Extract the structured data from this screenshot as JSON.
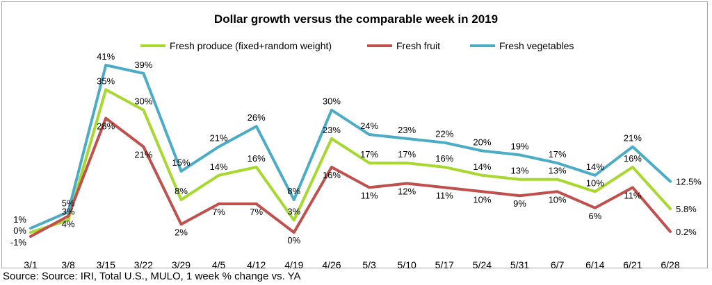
{
  "chart_data": {
    "type": "line",
    "title": "Dollar growth versus the comparable week in 2019",
    "categories": [
      "3/1",
      "3/8",
      "3/15",
      "3/22",
      "3/29",
      "4/5",
      "4/12",
      "4/19",
      "4/26",
      "5/3",
      "5/10",
      "5/17",
      "5/24",
      "5/31",
      "6/7",
      "6/14",
      "6/21",
      "6/28"
    ],
    "series": [
      {
        "name": "Fresh produce (fixed+random weight)",
        "color": "#a6d82e",
        "values": [
          0,
          3,
          35,
          30,
          8,
          14,
          16,
          3,
          23,
          17,
          17,
          16,
          14,
          13,
          13,
          10,
          16,
          5.8
        ],
        "labels": [
          "0%",
          "3%",
          "35%",
          "30%",
          "8%",
          "14%",
          "16%",
          "3%",
          "23%",
          "17%",
          "17%",
          "16%",
          "14%",
          "13%",
          "13%",
          "10%",
          "16%",
          "5.8%"
        ]
      },
      {
        "name": "Fresh fruit",
        "color": "#c0504d",
        "values": [
          -1,
          4,
          28,
          21,
          2,
          7,
          7,
          0,
          16,
          11,
          12,
          11,
          10,
          9,
          10,
          6,
          11,
          0.2
        ],
        "labels": [
          "-1%",
          "4%",
          "28%",
          "21%",
          "2%",
          "7%",
          "7%",
          "0%",
          "16%",
          "11%",
          "12%",
          "11%",
          "10%",
          "9%",
          "10%",
          "6%",
          "11%",
          "0.2%"
        ]
      },
      {
        "name": "Fresh vegetables",
        "color": "#4bacc6",
        "values": [
          1,
          5,
          41,
          39,
          15,
          21,
          26,
          8,
          30,
          24,
          23,
          22,
          20,
          19,
          17,
          14,
          21,
          12.5
        ],
        "labels": [
          "1%",
          "5%",
          "41%",
          "39%",
          "15%",
          "21%",
          "26%",
          "8%",
          "30%",
          "24%",
          "23%",
          "22%",
          "20%",
          "19%",
          "17%",
          "14%",
          "21%",
          "12.5%"
        ]
      }
    ],
    "ylim": [
      -1,
      41
    ],
    "grid": false,
    "legend_position": "top"
  },
  "source_note": "Source: Source: IRI, Total U.S., MULO, 1 week % change vs. YA"
}
